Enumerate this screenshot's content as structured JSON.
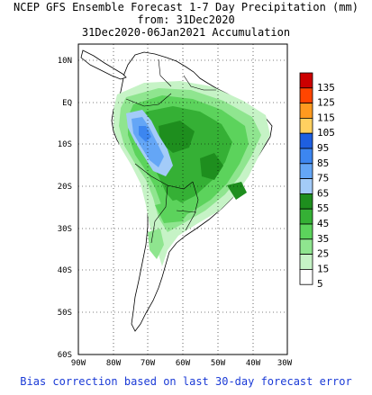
{
  "title": {
    "line1": "NCEP GFS Ensemble Forecast 1-7 Day Precipitation (mm)",
    "line2": "from: 31Dec2020",
    "line3": "31Dec2020-06Jan2021 Accumulation"
  },
  "map": {
    "lat_labels": [
      "10N",
      "EQ",
      "10S",
      "20S",
      "30S",
      "40S",
      "50S",
      "60S"
    ],
    "lon_labels": [
      "90W",
      "80W",
      "70W",
      "60W",
      "50W",
      "40W",
      "30W"
    ],
    "land_color": "#ffffff",
    "coast_color": "#000000",
    "grid_style": "dotted"
  },
  "legend": {
    "items": [
      {
        "label": "135",
        "color": "#cc0000"
      },
      {
        "label": "125",
        "color": "#ff4500"
      },
      {
        "label": "115",
        "color": "#ff9a1f"
      },
      {
        "label": "105",
        "color": "#ffd060"
      },
      {
        "label": "95",
        "color": "#1e5fe0"
      },
      {
        "label": "85",
        "color": "#3c86f0"
      },
      {
        "label": "75",
        "color": "#64a6f6"
      },
      {
        "label": "65",
        "color": "#a3cbf8"
      },
      {
        "label": "55",
        "color": "#1e8e1e"
      },
      {
        "label": "45",
        "color": "#35b035"
      },
      {
        "label": "35",
        "color": "#5cd35c"
      },
      {
        "label": "25",
        "color": "#8fe58f"
      },
      {
        "label": "15",
        "color": "#c6f3c6"
      },
      {
        "label": "5",
        "color": "#ffffff"
      }
    ]
  },
  "footer": "Bias correction based on last 30-day forecast error"
}
